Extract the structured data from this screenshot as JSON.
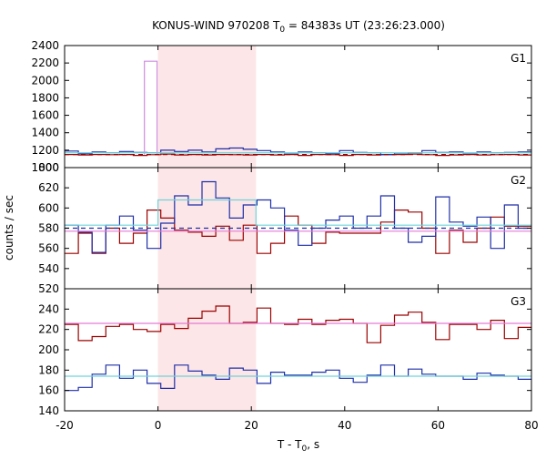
{
  "title_main": "KONUS-WIND 970208 T",
  "title_sub": "0",
  "title_rest": " = 84383s UT (23:26:23.000)",
  "xlabel_main": "T - T",
  "xlabel_sub": "0",
  "xlabel_rest": ", s",
  "ylabel": "counts / sec",
  "colors": {
    "red": "#9b0000",
    "blue": "#1f2fa8",
    "cyan": "#6fd3d9",
    "pink": "#e57ad6",
    "violet": "#cf8be0",
    "band": "#fde6e7"
  },
  "chart_data": {
    "type": "line",
    "step": true,
    "shared_x": {
      "label": "T - T0, s",
      "range": [
        -20,
        80
      ],
      "ticks": [
        -20,
        0,
        20,
        40,
        60,
        80
      ],
      "tick_labels": [
        "-20",
        "0",
        "20",
        "40",
        "60",
        "80"
      ]
    },
    "highlight_interval": [
      0,
      21
    ],
    "panels": [
      {
        "name": "G1",
        "ylim": [
          1000,
          2400
        ],
        "yticks": [
          800,
          1000,
          1200,
          1400,
          1600,
          1800,
          2000,
          2200,
          2400
        ],
        "ytick_labels": [
          "800",
          "1000",
          "1200",
          "1400",
          "1600",
          "1800",
          "2000",
          "2200",
          "2400"
        ],
        "series": [
          {
            "color": "red",
            "style": "step",
            "x0": -20,
            "dx": 2.944,
            "values": [
              1150,
              1145,
              1150,
              1148,
              1150,
              1140,
              1148,
              1155,
              1145,
              1150,
              1145,
              1150,
              1148,
              1145,
              1150,
              1145,
              1150,
              1140,
              1150,
              1148,
              1140,
              1150,
              1145,
              1148,
              1150,
              1155,
              1148,
              1140,
              1145,
              1150,
              1145,
              1148,
              1150,
              1145
            ]
          },
          {
            "color": "blue",
            "style": "step",
            "x0": -20,
            "dx": 2.944,
            "values": [
              1190,
              1160,
              1180,
              1170,
              1185,
              1175,
              1170,
              1200,
              1185,
              1200,
              1180,
              1215,
              1225,
              1210,
              1195,
              1180,
              1165,
              1180,
              1170,
              1160,
              1195,
              1175,
              1170,
              1150,
              1165,
              1170,
              1195,
              1175,
              1180,
              1165,
              1180,
              1170,
              1175,
              1180
            ]
          },
          {
            "color": "violet",
            "style": "step",
            "x": [
              -2.9,
              -2.9,
              -0.2,
              -0.2
            ],
            "y": [
              1150,
              2220,
              2220,
              1150
            ]
          },
          {
            "color": "cyan",
            "style": "level",
            "y": 1170
          },
          {
            "color": "red",
            "style": "dashed-level",
            "y": 1150
          }
        ]
      },
      {
        "name": "G2",
        "ylim": [
          520,
          640
        ],
        "yticks": [
          520,
          540,
          560,
          580,
          600,
          620
        ],
        "ytick_labels": [
          "520",
          "540",
          "560",
          "580",
          "600",
          "620"
        ],
        "series": [
          {
            "color": "red",
            "style": "step",
            "x0": -20,
            "dx": 2.944,
            "values": [
              555,
              575,
              555,
              580,
              565,
              575,
              598,
              590,
              578,
              576,
              572,
              582,
              568,
              583,
              555,
              565,
              592,
              583,
              565,
              576,
              575,
              575,
              575,
              586,
              598,
              596,
              580,
              555,
              578,
              566,
              580,
              591,
              582,
              582
            ]
          },
          {
            "color": "blue",
            "style": "step",
            "x0": -20,
            "dx": 2.944,
            "values": [
              583,
              576,
              556,
              583,
              592,
              578,
              560,
              585,
              612,
              603,
              626,
              610,
              590,
              603,
              608,
              600,
              578,
              563,
              580,
              588,
              592,
              580,
              592,
              612,
              580,
              566,
              572,
              611,
              586,
              582,
              591,
              560,
              603,
              580
            ]
          },
          {
            "color": "cyan",
            "style": "step",
            "x": [
              -20,
              0,
              0,
              21,
              21,
              80
            ],
            "y": [
              583,
              583,
              608,
              608,
              583,
              583
            ]
          },
          {
            "color": "pink",
            "style": "level",
            "y": 577
          },
          {
            "color": "blue",
            "style": "dashed-level",
            "y": 580
          }
        ]
      },
      {
        "name": "G3",
        "ylim": [
          140,
          260
        ],
        "yticks": [
          140,
          160,
          180,
          200,
          220,
          240
        ],
        "ytick_labels": [
          "140",
          "160",
          "180",
          "200",
          "220",
          "240"
        ],
        "series": [
          {
            "color": "red",
            "style": "step",
            "x0": -20,
            "dx": 2.944,
            "values": [
              225,
              209,
              213,
              223,
              225,
              220,
              218,
              225,
              221,
              231,
              238,
              243,
              226,
              227,
              241,
              226,
              225,
              230,
              225,
              229,
              230,
              226,
              207,
              224,
              234,
              237,
              227,
              210,
              225,
              225,
              220,
              229,
              211,
              222
            ]
          },
          {
            "color": "blue",
            "style": "step",
            "x0": -20,
            "dx": 2.944,
            "values": [
              160,
              163,
              176,
              185,
              172,
              180,
              167,
              162,
              185,
              179,
              175,
              171,
              182,
              180,
              167,
              178,
              175,
              175,
              178,
              180,
              172,
              168,
              175,
              185,
              174,
              181,
              176,
              174,
              174,
              171,
              177,
              175,
              174,
              171
            ]
          },
          {
            "color": "pink",
            "style": "level",
            "y": 226
          },
          {
            "color": "cyan",
            "style": "level",
            "y": 174
          }
        ]
      }
    ]
  }
}
